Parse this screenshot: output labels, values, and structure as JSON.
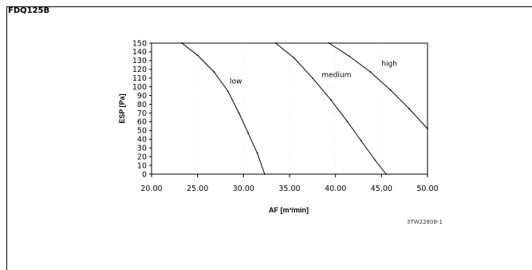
{
  "figure": {
    "model_label": "FDQ125B",
    "reference_code": "3TW22808-1"
  },
  "chart_data": {
    "type": "line",
    "title": "",
    "xlabel": "AF [m³/min]",
    "ylabel": "ESP [Pa]",
    "xlim": [
      20,
      50
    ],
    "ylim": [
      0,
      150
    ],
    "xticks": [
      20,
      25,
      30,
      35,
      40,
      45,
      50
    ],
    "xtick_labels": [
      "20.00",
      "25.00",
      "30.00",
      "35.00",
      "40.00",
      "45.00",
      "50.00"
    ],
    "yticks": [
      0,
      10,
      20,
      30,
      40,
      50,
      60,
      70,
      80,
      90,
      100,
      110,
      120,
      130,
      140,
      150
    ],
    "grid": false,
    "series": [
      {
        "name": "low",
        "label_at": [
          28.5,
          104
        ],
        "points": [
          [
            23.3,
            150
          ],
          [
            25.0,
            136
          ],
          [
            26.8,
            117
          ],
          [
            28.3,
            95
          ],
          [
            29.5,
            70
          ],
          [
            30.5,
            47
          ],
          [
            31.5,
            24
          ],
          [
            32.3,
            0
          ]
        ]
      },
      {
        "name": "medium",
        "label_at": [
          38.5,
          111
        ],
        "points": [
          [
            33.5,
            150
          ],
          [
            35.5,
            133
          ],
          [
            37.5,
            110
          ],
          [
            39.5,
            85
          ],
          [
            41.3,
            60
          ],
          [
            42.8,
            38
          ],
          [
            44.3,
            16
          ],
          [
            45.5,
            0
          ]
        ]
      },
      {
        "name": "high",
        "label_at": [
          45.0,
          124
        ],
        "points": [
          [
            39.3,
            150
          ],
          [
            41.5,
            135
          ],
          [
            43.8,
            117
          ],
          [
            46.0,
            96
          ],
          [
            48.0,
            75
          ],
          [
            50.0,
            52
          ]
        ]
      }
    ]
  }
}
